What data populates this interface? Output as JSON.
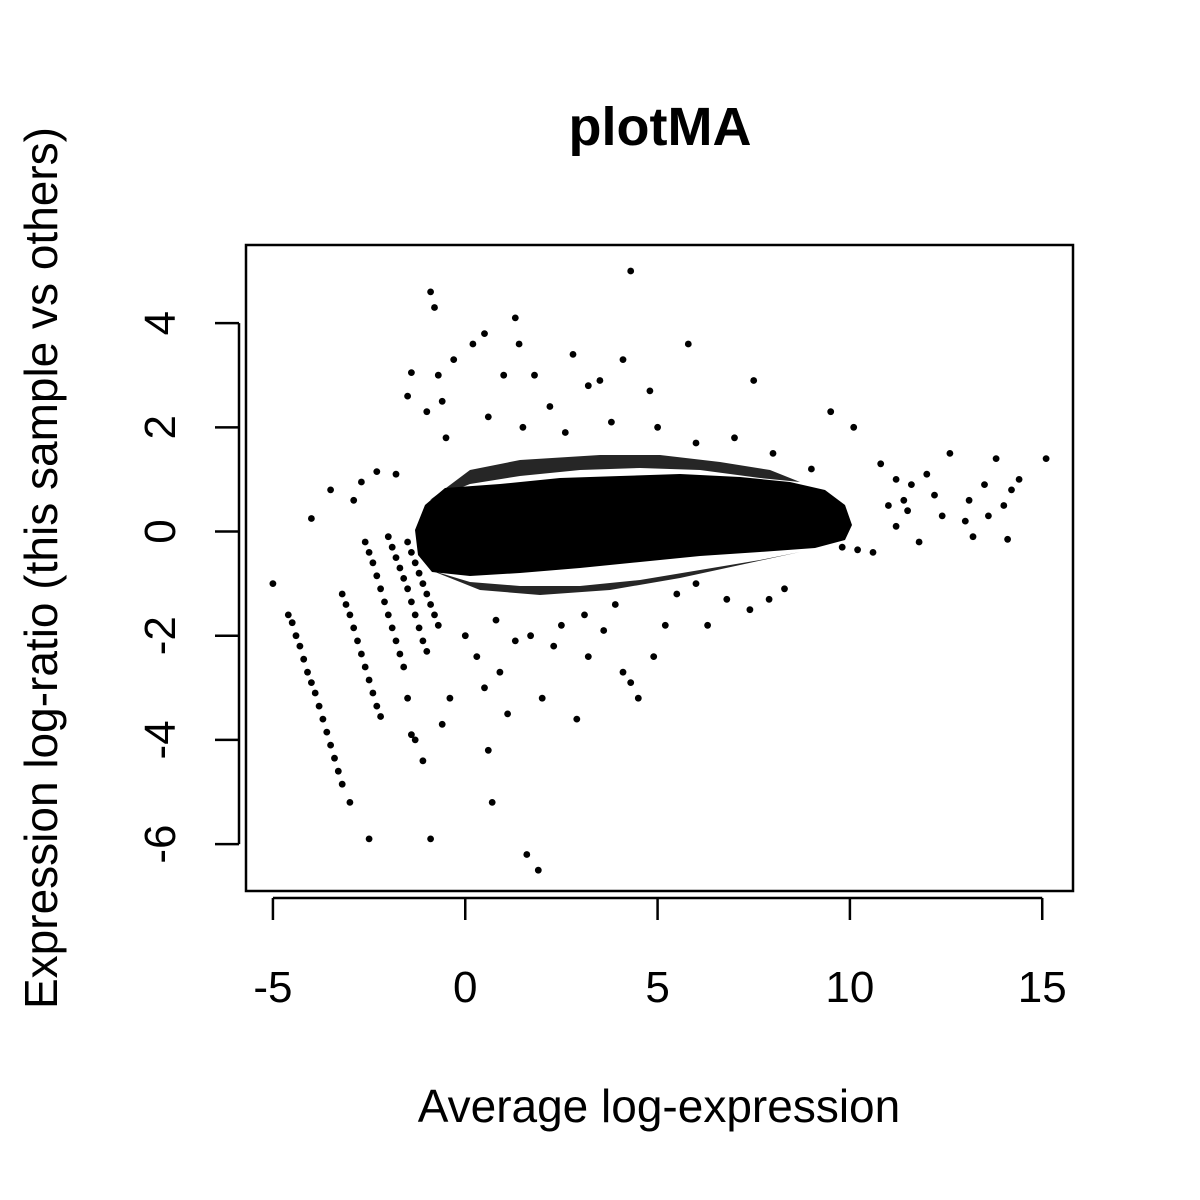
{
  "chart_data": {
    "type": "scatter",
    "title": "plotMA",
    "xlabel": "Average log-expression",
    "ylabel": "Expression log-ratio (this sample vs others)",
    "xlim": [
      -5.7,
      15.8
    ],
    "ylim": [
      -6.9,
      5.5
    ],
    "x_ticks": [
      -5,
      0,
      5,
      10,
      15
    ],
    "x_tick_labels": [
      "-5",
      "0",
      "5",
      "10",
      "15"
    ],
    "y_ticks": [
      -6,
      -4,
      -2,
      0,
      2,
      4
    ],
    "y_tick_labels": [
      "-6",
      "-4",
      "-2",
      "0",
      "2",
      "4"
    ],
    "grid": false,
    "marker_color": "#000000",
    "points": [
      [
        -5.0,
        -1.0
      ],
      [
        -4.6,
        -1.6
      ],
      [
        -4.5,
        -1.75
      ],
      [
        -4.4,
        -2.0
      ],
      [
        -4.3,
        -2.2
      ],
      [
        -4.2,
        -2.45
      ],
      [
        -4.1,
        -2.7
      ],
      [
        -4.0,
        -2.9
      ],
      [
        -3.9,
        -3.1
      ],
      [
        -3.8,
        -3.35
      ],
      [
        -3.7,
        -3.6
      ],
      [
        -3.6,
        -3.85
      ],
      [
        -3.5,
        -4.1
      ],
      [
        -3.4,
        -4.35
      ],
      [
        -3.3,
        -4.6
      ],
      [
        -3.2,
        -4.85
      ],
      [
        -3.0,
        -5.2
      ],
      [
        -2.5,
        -5.9
      ],
      [
        -3.2,
        -1.2
      ],
      [
        -3.1,
        -1.4
      ],
      [
        -3.0,
        -1.6
      ],
      [
        -2.9,
        -1.85
      ],
      [
        -2.8,
        -2.1
      ],
      [
        -2.7,
        -2.35
      ],
      [
        -2.6,
        -2.6
      ],
      [
        -2.5,
        -2.85
      ],
      [
        -2.4,
        -3.1
      ],
      [
        -2.3,
        -3.35
      ],
      [
        -2.2,
        -3.55
      ],
      [
        -2.6,
        -0.2
      ],
      [
        -2.5,
        -0.4
      ],
      [
        -2.4,
        -0.6
      ],
      [
        -2.3,
        -0.85
      ],
      [
        -2.2,
        -1.1
      ],
      [
        -2.1,
        -1.35
      ],
      [
        -2.0,
        -1.6
      ],
      [
        -1.9,
        -1.85
      ],
      [
        -1.8,
        -2.1
      ],
      [
        -1.7,
        -2.35
      ],
      [
        -1.6,
        -2.6
      ],
      [
        -1.5,
        -3.2
      ],
      [
        -1.4,
        -3.9
      ],
      [
        -1.3,
        -4.0
      ],
      [
        -1.1,
        -4.4
      ],
      [
        -2.0,
        -0.1
      ],
      [
        -1.9,
        -0.3
      ],
      [
        -1.8,
        -0.5
      ],
      [
        -1.7,
        -0.7
      ],
      [
        -1.6,
        -0.9
      ],
      [
        -1.5,
        -1.1
      ],
      [
        -1.4,
        -1.35
      ],
      [
        -1.3,
        -1.6
      ],
      [
        -1.2,
        -1.85
      ],
      [
        -1.1,
        -2.1
      ],
      [
        -1.0,
        -2.3
      ],
      [
        -1.5,
        -0.2
      ],
      [
        -1.4,
        -0.4
      ],
      [
        -1.3,
        -0.6
      ],
      [
        -1.2,
        -0.8
      ],
      [
        -1.1,
        -1.0
      ],
      [
        -1.0,
        -1.2
      ],
      [
        -0.9,
        -1.4
      ],
      [
        -0.8,
        -1.6
      ],
      [
        -0.7,
        -1.8
      ],
      [
        -4.0,
        0.25
      ],
      [
        -3.5,
        0.8
      ],
      [
        -2.7,
        0.95
      ],
      [
        -2.9,
        0.6
      ],
      [
        -2.3,
        1.15
      ],
      [
        -1.8,
        1.1
      ],
      [
        -1.5,
        2.6
      ],
      [
        -1.4,
        3.05
      ],
      [
        -1.0,
        2.3
      ],
      [
        -0.9,
        4.6
      ],
      [
        -0.8,
        4.3
      ],
      [
        -0.7,
        3.0
      ],
      [
        -0.6,
        2.5
      ],
      [
        -0.5,
        1.8
      ],
      [
        -0.3,
        3.3
      ],
      [
        0.2,
        3.6
      ],
      [
        0.5,
        3.8
      ],
      [
        1.0,
        3.0
      ],
      [
        1.3,
        4.1
      ],
      [
        1.4,
        3.6
      ],
      [
        1.8,
        3.0
      ],
      [
        2.2,
        2.4
      ],
      [
        2.8,
        3.4
      ],
      [
        3.2,
        2.8
      ],
      [
        3.5,
        2.9
      ],
      [
        4.1,
        3.3
      ],
      [
        4.3,
        5.0
      ],
      [
        4.8,
        2.7
      ],
      [
        5.8,
        3.6
      ],
      [
        7.5,
        2.9
      ],
      [
        9.5,
        2.3
      ],
      [
        10.1,
        2.0
      ],
      [
        0.6,
        2.2
      ],
      [
        1.5,
        2.0
      ],
      [
        2.6,
        1.9
      ],
      [
        3.8,
        2.1
      ],
      [
        5.0,
        2.0
      ],
      [
        6.0,
        1.7
      ],
      [
        7.0,
        1.8
      ],
      [
        8.0,
        1.5
      ],
      [
        9.0,
        1.2
      ],
      [
        10.8,
        1.3
      ],
      [
        11.2,
        1.0
      ],
      [
        11.6,
        0.9
      ],
      [
        12.0,
        1.1
      ],
      [
        12.6,
        1.5
      ],
      [
        13.1,
        0.6
      ],
      [
        13.5,
        0.9
      ],
      [
        13.8,
        1.4
      ],
      [
        14.2,
        0.8
      ],
      [
        14.4,
        1.0
      ],
      [
        15.1,
        1.4
      ],
      [
        11.0,
        0.5
      ],
      [
        11.5,
        0.4
      ],
      [
        12.2,
        0.7
      ],
      [
        12.4,
        0.3
      ],
      [
        13.0,
        0.2
      ],
      [
        13.6,
        0.3
      ],
      [
        14.0,
        0.5
      ],
      [
        11.2,
        0.1
      ],
      [
        11.8,
        -0.2
      ],
      [
        13.2,
        -0.1
      ],
      [
        14.1,
        -0.15
      ],
      [
        11.4,
        0.6
      ],
      [
        10.6,
        -0.4
      ],
      [
        10.2,
        -0.35
      ],
      [
        9.8,
        -0.3
      ],
      [
        -0.6,
        -3.7
      ],
      [
        -0.4,
        -3.2
      ],
      [
        0.3,
        -2.4
      ],
      [
        0.5,
        -3.0
      ],
      [
        0.6,
        -4.2
      ],
      [
        0.9,
        -2.7
      ],
      [
        1.1,
        -3.5
      ],
      [
        1.3,
        -2.1
      ],
      [
        1.6,
        -6.2
      ],
      [
        1.9,
        -6.5
      ],
      [
        2.0,
        -3.2
      ],
      [
        2.3,
        -2.2
      ],
      [
        2.9,
        -3.6
      ],
      [
        3.2,
        -2.4
      ],
      [
        3.6,
        -1.9
      ],
      [
        4.1,
        -2.7
      ],
      [
        4.3,
        -2.9
      ],
      [
        4.5,
        -3.2
      ],
      [
        4.9,
        -2.4
      ],
      [
        5.2,
        -1.8
      ],
      [
        6.3,
        -1.8
      ],
      [
        6.8,
        -1.3
      ],
      [
        7.4,
        -1.5
      ],
      [
        7.9,
        -1.3
      ],
      [
        8.3,
        -1.1
      ],
      [
        0.7,
        -5.2
      ],
      [
        -0.9,
        -5.9
      ],
      [
        0.0,
        -2.0
      ],
      [
        0.8,
        -1.7
      ],
      [
        1.7,
        -2.0
      ],
      [
        2.5,
        -1.8
      ],
      [
        3.1,
        -1.6
      ],
      [
        3.9,
        -1.4
      ],
      [
        5.5,
        -1.2
      ],
      [
        6.0,
        -1.0
      ]
    ]
  }
}
